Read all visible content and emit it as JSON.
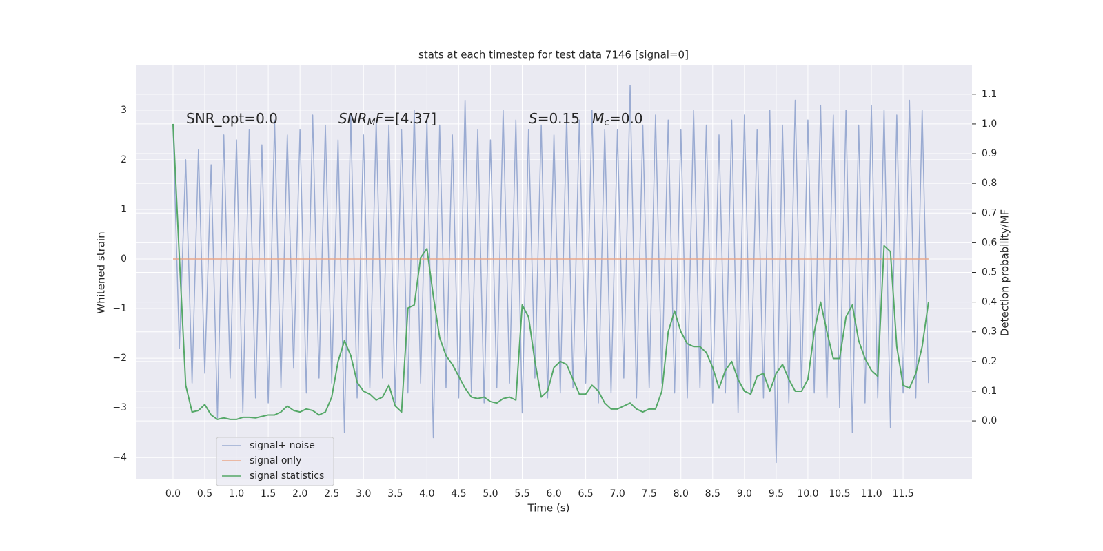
{
  "chart_data": {
    "type": "line",
    "title": "stats at each timestep for test data 7146 [signal=0]",
    "xlabel": "Time (s)",
    "ylabel": "Whitened strain",
    "y2label": "Detection probability/MF",
    "annotations": [
      [
        {
          "text": "SNR_opt=0.0"
        }
      ],
      [
        {
          "text": "SNR",
          "italic": true
        },
        {
          "text": "M",
          "italic": true,
          "sub": true
        },
        {
          "text": "F",
          "italic": true
        },
        {
          "text": "=[4.37]"
        }
      ],
      [
        {
          "text": "S",
          "italic": true
        },
        {
          "text": "=0.15"
        }
      ],
      [
        {
          "text": "M",
          "italic": true
        },
        {
          "text": "c",
          "italic": true,
          "sub": true
        },
        {
          "text": "=0.0"
        }
      ]
    ],
    "x": [
      0.0,
      0.1,
      0.2,
      0.3,
      0.4,
      0.5,
      0.6,
      0.7,
      0.8,
      0.9,
      1.0,
      1.1,
      1.2,
      1.3,
      1.4,
      1.5,
      1.6,
      1.7,
      1.8,
      1.9,
      2.0,
      2.1,
      2.2,
      2.3,
      2.4,
      2.5,
      2.6,
      2.7,
      2.8,
      2.9,
      3.0,
      3.1,
      3.2,
      3.3,
      3.4,
      3.5,
      3.6,
      3.7,
      3.8,
      3.9,
      4.0,
      4.1,
      4.2,
      4.3,
      4.4,
      4.5,
      4.6,
      4.7,
      4.8,
      4.9,
      5.0,
      5.1,
      5.2,
      5.3,
      5.4,
      5.5,
      5.6,
      5.7,
      5.8,
      5.9,
      6.0,
      6.1,
      6.2,
      6.3,
      6.4,
      6.5,
      6.6,
      6.7,
      6.8,
      6.9,
      7.0,
      7.1,
      7.2,
      7.3,
      7.4,
      7.5,
      7.6,
      7.7,
      7.8,
      7.9,
      8.0,
      8.1,
      8.2,
      8.3,
      8.4,
      8.5,
      8.6,
      8.7,
      8.8,
      8.9,
      9.0,
      9.1,
      9.2,
      9.3,
      9.4,
      9.5,
      9.6,
      9.7,
      9.8,
      9.9,
      10.0,
      10.1,
      10.2,
      10.3,
      10.4,
      10.5,
      10.6,
      10.7,
      10.8,
      10.9,
      11.0,
      11.1,
      11.2,
      11.3,
      11.4,
      11.5,
      11.6,
      11.7,
      11.8,
      11.9
    ],
    "series": [
      {
        "name": "signal+ noise",
        "color": "#9aabd2",
        "values": [
          2.7,
          -1.8,
          2.0,
          -2.5,
          2.2,
          -2.3,
          1.9,
          -3.2,
          2.5,
          -2.4,
          2.4,
          -3.1,
          2.6,
          -2.8,
          2.3,
          -2.9,
          2.8,
          -2.6,
          2.5,
          -2.2,
          2.6,
          -2.7,
          2.9,
          -2.4,
          2.7,
          -2.5,
          2.4,
          -3.5,
          2.9,
          -2.8,
          2.5,
          -2.6,
          2.8,
          -2.4,
          2.7,
          -2.9,
          2.6,
          -2.7,
          3.0,
          -2.5,
          2.8,
          -3.6,
          2.7,
          -2.6,
          2.5,
          -2.8,
          3.2,
          -2.7,
          2.6,
          -2.9,
          2.4,
          -2.6,
          3.0,
          -2.5,
          2.8,
          -3.1,
          2.6,
          -2.4,
          2.7,
          -2.8,
          2.5,
          -2.7,
          2.9,
          -2.6,
          2.8,
          -2.5,
          3.0,
          -2.9,
          2.6,
          -2.7,
          2.6,
          -2.4,
          3.5,
          -2.8,
          2.7,
          -2.6,
          2.9,
          -2.5,
          2.8,
          -2.7,
          2.6,
          -2.8,
          3.0,
          -2.6,
          2.7,
          -2.9,
          2.5,
          -2.7,
          2.8,
          -3.1,
          2.9,
          -2.7,
          2.6,
          -2.8,
          3.0,
          -4.1,
          2.7,
          -2.9,
          3.2,
          -2.6,
          2.8,
          -2.7,
          3.1,
          -2.8,
          2.9,
          -3.0,
          3.0,
          -3.5,
          2.7,
          -2.9,
          3.1,
          -2.8,
          3.0,
          -3.4,
          2.9,
          -2.7,
          3.2,
          -2.8,
          3.0,
          -2.5
        ]
      },
      {
        "name": "signal only",
        "color": "#e9a889",
        "values": [
          0,
          0,
          0,
          0,
          0,
          0,
          0,
          0,
          0,
          0,
          0,
          0,
          0,
          0,
          0,
          0,
          0,
          0,
          0,
          0,
          0,
          0,
          0,
          0,
          0,
          0,
          0,
          0,
          0,
          0,
          0,
          0,
          0,
          0,
          0,
          0,
          0,
          0,
          0,
          0,
          0,
          0,
          0,
          0,
          0,
          0,
          0,
          0,
          0,
          0,
          0,
          0,
          0,
          0,
          0,
          0,
          0,
          0,
          0,
          0,
          0,
          0,
          0,
          0,
          0,
          0,
          0,
          0,
          0,
          0,
          0,
          0,
          0,
          0,
          0,
          0,
          0,
          0,
          0,
          0,
          0,
          0,
          0,
          0,
          0,
          0,
          0,
          0,
          0,
          0,
          0,
          0,
          0,
          0,
          0,
          0,
          0,
          0,
          0,
          0,
          0,
          0,
          0,
          0,
          0,
          0,
          0,
          0,
          0,
          0,
          0,
          0,
          0,
          0,
          0,
          0,
          0,
          0,
          0,
          0
        ]
      },
      {
        "name": "signal statistics",
        "color": "#55a868",
        "axis": "y2",
        "values": [
          1.0,
          0.55,
          0.12,
          0.03,
          0.035,
          0.055,
          0.02,
          0.005,
          0.01,
          0.005,
          0.005,
          0.012,
          0.012,
          0.01,
          0.015,
          0.02,
          0.02,
          0.03,
          0.05,
          0.035,
          0.03,
          0.04,
          0.035,
          0.02,
          0.03,
          0.08,
          0.2,
          0.27,
          0.22,
          0.13,
          0.1,
          0.09,
          0.07,
          0.08,
          0.12,
          0.05,
          0.03,
          0.38,
          0.39,
          0.55,
          0.58,
          0.42,
          0.28,
          0.22,
          0.19,
          0.15,
          0.11,
          0.08,
          0.075,
          0.08,
          0.065,
          0.06,
          0.075,
          0.08,
          0.07,
          0.39,
          0.35,
          0.2,
          0.08,
          0.1,
          0.18,
          0.2,
          0.19,
          0.14,
          0.09,
          0.09,
          0.12,
          0.1,
          0.06,
          0.04,
          0.04,
          0.05,
          0.06,
          0.04,
          0.03,
          0.04,
          0.04,
          0.1,
          0.3,
          0.37,
          0.3,
          0.26,
          0.25,
          0.25,
          0.23,
          0.18,
          0.11,
          0.17,
          0.2,
          0.14,
          0.1,
          0.09,
          0.15,
          0.16,
          0.1,
          0.16,
          0.19,
          0.14,
          0.1,
          0.1,
          0.14,
          0.3,
          0.4,
          0.3,
          0.21,
          0.21,
          0.35,
          0.39,
          0.27,
          0.21,
          0.17,
          0.15,
          0.59,
          0.57,
          0.25,
          0.12,
          0.11,
          0.16,
          0.25,
          0.4
        ]
      }
    ],
    "xlim": [
      -0.586,
      12.585
    ],
    "xticks": [
      {
        "value": 0,
        "label": "0.0"
      },
      0.5,
      {
        "value": 1,
        "label": "1.0"
      },
      1.5,
      {
        "value": 2,
        "label": "2.0"
      },
      2.5,
      {
        "value": 3,
        "label": "3.0"
      },
      3.5,
      {
        "value": 4,
        "label": "4.0"
      },
      4.5,
      {
        "value": 5,
        "label": "5.0"
      },
      5.5,
      {
        "value": 6,
        "label": "6.0"
      },
      6.5,
      {
        "value": 7,
        "label": "7.0"
      },
      7.5,
      {
        "value": 8,
        "label": "8.0"
      },
      8.5,
      {
        "value": 9,
        "label": "9.0"
      },
      9.5,
      {
        "value": 10,
        "label": "10.0"
      },
      10.5,
      {
        "value": 11,
        "label": "11.0"
      },
      11.5
    ],
    "ylim": [
      -4.44,
      3.9
    ],
    "yticks": [
      {
        "value": -4,
        "label": "−4"
      },
      {
        "value": -3,
        "label": "−3"
      },
      {
        "value": -2,
        "label": "−2"
      },
      {
        "value": -1,
        "label": "−1"
      },
      0,
      1,
      2,
      3
    ],
    "y2lim": [
      -0.197,
      1.197
    ],
    "y2ticks": [
      {
        "value": 0,
        "label": "0.0"
      },
      0.1,
      0.2,
      0.3,
      0.4,
      0.5,
      0.6,
      0.7,
      0.8,
      0.9,
      {
        "value": 1,
        "label": "1.0"
      },
      1.1
    ],
    "grid": true,
    "legend": "lower left",
    "background": "#eaeaf2"
  }
}
